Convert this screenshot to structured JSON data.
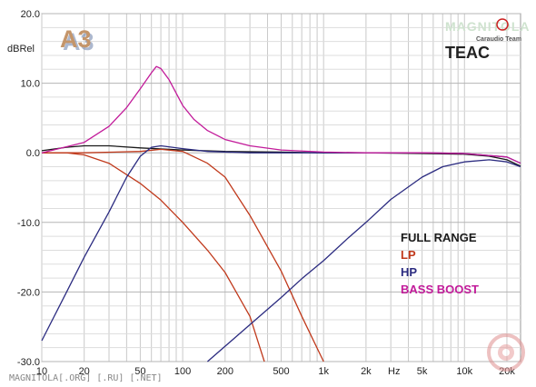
{
  "chart_data": {
    "type": "line",
    "title": "",
    "ylabel": "dBRel",
    "xlabel": "Hz",
    "xscale": "log",
    "xlim": [
      10,
      25000
    ],
    "ylim": [
      -30,
      20
    ],
    "grid": true,
    "x_ticks": [
      {
        "value": 10,
        "label": "10"
      },
      {
        "value": 20,
        "label": "20"
      },
      {
        "value": 50,
        "label": "50"
      },
      {
        "value": 100,
        "label": "100"
      },
      {
        "value": 200,
        "label": "200"
      },
      {
        "value": 500,
        "label": "500"
      },
      {
        "value": 1000,
        "label": "1k"
      },
      {
        "value": 2000,
        "label": "2k"
      },
      {
        "value": 5000,
        "label": "5k"
      },
      {
        "value": 10000,
        "label": "10k"
      },
      {
        "value": 20000,
        "label": "20k"
      }
    ],
    "y_ticks": [
      {
        "value": 20,
        "label": "20.0"
      },
      {
        "value": 10,
        "label": "10.0"
      },
      {
        "value": 0,
        "label": "0.0"
      },
      {
        "value": -10,
        "label": "-10.0"
      },
      {
        "value": -20,
        "label": "-20.0"
      },
      {
        "value": -30,
        "label": "-30.0"
      }
    ],
    "legend_position": "right",
    "series": [
      {
        "name": "FULL RANGE",
        "color": "#1a1a1a",
        "points": [
          [
            10,
            0.3
          ],
          [
            15,
            0.8
          ],
          [
            20,
            1.0
          ],
          [
            30,
            1.0
          ],
          [
            50,
            0.7
          ],
          [
            100,
            0.4
          ],
          [
            200,
            0.2
          ],
          [
            500,
            0.1
          ],
          [
            1000,
            0.0
          ],
          [
            2000,
            0.0
          ],
          [
            5000,
            -0.1
          ],
          [
            10000,
            -0.2
          ],
          [
            15000,
            -0.5
          ],
          [
            20000,
            -1.0
          ],
          [
            25000,
            -1.9
          ]
        ]
      },
      {
        "name": "LP",
        "color": "#c0391b",
        "points": [
          [
            10,
            0.0
          ],
          [
            15,
            0.0
          ],
          [
            20,
            -0.3
          ],
          [
            30,
            -1.5
          ],
          [
            50,
            -4.4
          ],
          [
            70,
            -6.8
          ],
          [
            100,
            -10.0
          ],
          [
            150,
            -14.0
          ],
          [
            200,
            -17.2
          ],
          [
            300,
            -23.5
          ],
          [
            380,
            -30.0
          ]
        ]
      },
      {
        "name": "LP",
        "color": "#c0391b",
        "points": [
          [
            10,
            0.0
          ],
          [
            20,
            0.0
          ],
          [
            50,
            0.2
          ],
          [
            70,
            0.5
          ],
          [
            100,
            0.2
          ],
          [
            150,
            -1.5
          ],
          [
            200,
            -3.5
          ],
          [
            300,
            -9.0
          ],
          [
            500,
            -17.0
          ],
          [
            700,
            -23.5
          ],
          [
            1000,
            -30.0
          ]
        ]
      },
      {
        "name": "HP",
        "color": "#2b2b80",
        "points": [
          [
            10,
            -27.0
          ],
          [
            15,
            -20.0
          ],
          [
            20,
            -15.0
          ],
          [
            30,
            -8.5
          ],
          [
            40,
            -3.5
          ],
          [
            50,
            -0.5
          ],
          [
            60,
            0.8
          ],
          [
            70,
            1.0
          ],
          [
            100,
            0.6
          ],
          [
            150,
            0.2
          ],
          [
            300,
            0.0
          ],
          [
            1000,
            0.0
          ],
          [
            5000,
            0.0
          ],
          [
            10000,
            -0.1
          ],
          [
            20000,
            -0.6
          ],
          [
            25000,
            -1.5
          ]
        ]
      },
      {
        "name": "HP",
        "color": "#2b2b80",
        "points": [
          [
            150,
            -30.0
          ],
          [
            200,
            -27.8
          ],
          [
            300,
            -24.7
          ],
          [
            500,
            -20.8
          ],
          [
            700,
            -18.1
          ],
          [
            1000,
            -15.5
          ],
          [
            1500,
            -12.2
          ],
          [
            2000,
            -10.0
          ],
          [
            3000,
            -6.7
          ],
          [
            5000,
            -3.5
          ],
          [
            7000,
            -2.0
          ],
          [
            10000,
            -1.3
          ],
          [
            15000,
            -1.0
          ],
          [
            20000,
            -1.3
          ],
          [
            25000,
            -2.0
          ]
        ]
      },
      {
        "name": "BASS BOOST",
        "color": "#c21b9a",
        "points": [
          [
            10,
            0.0
          ],
          [
            20,
            1.5
          ],
          [
            30,
            3.8
          ],
          [
            40,
            6.5
          ],
          [
            50,
            9.2
          ],
          [
            60,
            11.5
          ],
          [
            65,
            12.4
          ],
          [
            70,
            12.1
          ],
          [
            80,
            10.5
          ],
          [
            100,
            6.8
          ],
          [
            120,
            4.8
          ],
          [
            150,
            3.2
          ],
          [
            200,
            1.9
          ],
          [
            300,
            1.0
          ],
          [
            500,
            0.4
          ],
          [
            1000,
            0.1
          ],
          [
            2000,
            0.0
          ],
          [
            5000,
            0.0
          ],
          [
            10000,
            -0.1
          ],
          [
            20000,
            -0.6
          ],
          [
            25000,
            -1.5
          ]
        ]
      }
    ]
  },
  "legend": [
    {
      "label": "FULL RANGE",
      "color": "#1a1a1a"
    },
    {
      "label": "LP",
      "color": "#c0391b"
    },
    {
      "label": "HP",
      "color": "#2b2b80"
    },
    {
      "label": "BASS BOOST",
      "color": "#c21b9a"
    }
  ],
  "brand": {
    "badge": "A3",
    "logo_top": "MAGNITOLA",
    "logo_sub": "Caraudio Team",
    "maker": "TEAC",
    "footer": "MAGNITOLA[.ORG] [.RU] [.NET]"
  }
}
